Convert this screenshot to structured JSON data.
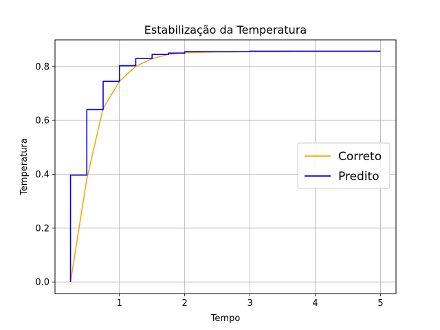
{
  "chart_data": {
    "type": "line",
    "title": "Estabilização da Temperatura",
    "xlabel": "Tempo",
    "ylabel": "Temperatura",
    "xlim": [
      0.0125,
      5.2375
    ],
    "ylim": [
      -0.043,
      0.899
    ],
    "xticks": [
      1,
      2,
      3,
      4,
      5
    ],
    "yticks": [
      0.0,
      0.2,
      0.4,
      0.6,
      0.8
    ],
    "xtick_labels": [
      "1",
      "2",
      "3",
      "4",
      "5"
    ],
    "ytick_labels": [
      "0.0",
      "0.2",
      "0.4",
      "0.6",
      "0.8"
    ],
    "grid": true,
    "legend_position": "center-right",
    "series": [
      {
        "name": "Correto",
        "color": "#ffa500",
        "style": "line",
        "x": [
          0.25,
          0.5,
          0.75,
          1.0,
          1.25,
          1.5,
          1.75,
          2.0,
          2.25,
          2.5,
          2.75,
          3.0,
          3.25,
          3.5,
          3.75,
          4.0,
          4.25,
          4.5,
          4.75,
          5.0
        ],
        "y": [
          0.0,
          0.383,
          0.645,
          0.745,
          0.801,
          0.829,
          0.845,
          0.851,
          0.853,
          0.854,
          0.854,
          0.855,
          0.855,
          0.855,
          0.856,
          0.856,
          0.856,
          0.856,
          0.856,
          0.856
        ]
      },
      {
        "name": "Predito",
        "color": "#0000ff",
        "style": "step",
        "x": [
          0.25,
          0.25,
          0.5,
          0.75,
          1.0,
          1.25,
          1.5,
          1.75,
          2.0,
          2.5,
          3.0,
          3.5,
          4.0,
          4.5,
          5.0
        ],
        "y": [
          0.0,
          0.397,
          0.64,
          0.745,
          0.803,
          0.83,
          0.845,
          0.85,
          0.855,
          0.855,
          0.857,
          0.857,
          0.857,
          0.857,
          0.857
        ]
      }
    ]
  }
}
